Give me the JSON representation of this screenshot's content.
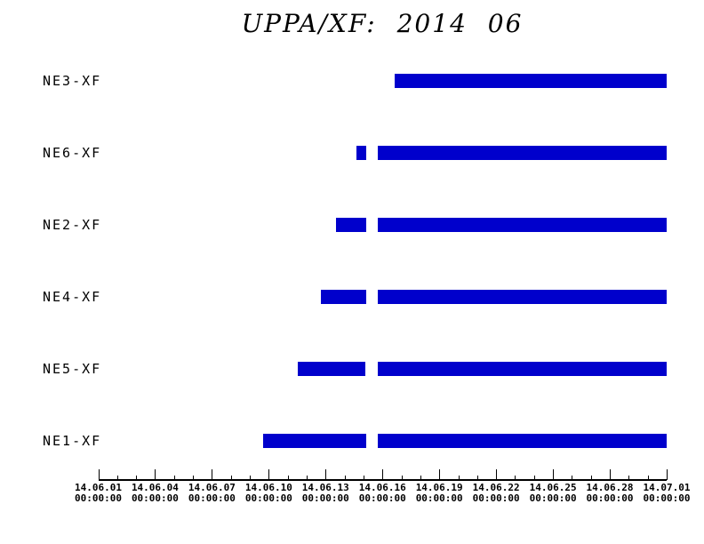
{
  "title": "UPPA/XF: 2014 06",
  "chart_data": {
    "type": "bar",
    "subtype": "gantt-timeline",
    "title": "UPPA/XF: 2014 06",
    "grid": false,
    "legend": false,
    "bar_color": "#0000cc",
    "background_color": "#ffffff",
    "text_color": "#000000",
    "rows": [
      {
        "label": "NE3-XF",
        "segments_days": [
          [
            15.63,
            30.0
          ]
        ]
      },
      {
        "label": "NE6-XF",
        "segments_days": [
          [
            13.61,
            14.15
          ],
          [
            14.77,
            30.0
          ]
        ]
      },
      {
        "label": "NE2-XF",
        "segments_days": [
          [
            12.56,
            14.14
          ],
          [
            14.77,
            30.0
          ]
        ]
      },
      {
        "label": "NE4-XF",
        "segments_days": [
          [
            11.75,
            14.13
          ],
          [
            14.77,
            30.0
          ]
        ]
      },
      {
        "label": "NE5-XF",
        "segments_days": [
          [
            10.53,
            14.12
          ],
          [
            14.77,
            30.0
          ]
        ]
      },
      {
        "label": "NE1-XF",
        "segments_days": [
          [
            8.7,
            14.13
          ],
          [
            14.77,
            30.0
          ]
        ]
      }
    ],
    "x_axis": {
      "range_days": [
        0,
        30
      ],
      "major_tick_interval_days": 3,
      "minor_tick_interval_days": 1,
      "tick_labels": [
        {
          "date": "14.06.01",
          "time": "00:00:00"
        },
        {
          "date": "14.06.04",
          "time": "00:00:00"
        },
        {
          "date": "14.06.07",
          "time": "00:00:00"
        },
        {
          "date": "14.06.10",
          "time": "00:00:00"
        },
        {
          "date": "14.06.13",
          "time": "00:00:00"
        },
        {
          "date": "14.06.16",
          "time": "00:00:00"
        },
        {
          "date": "14.06.19",
          "time": "00:00:00"
        },
        {
          "date": "14.06.22",
          "time": "00:00:00"
        },
        {
          "date": "14.06.25",
          "time": "00:00:00"
        },
        {
          "date": "14.06.28",
          "time": "00:00:00"
        },
        {
          "date": "14.07.01",
          "time": "00:00:00"
        }
      ]
    }
  }
}
